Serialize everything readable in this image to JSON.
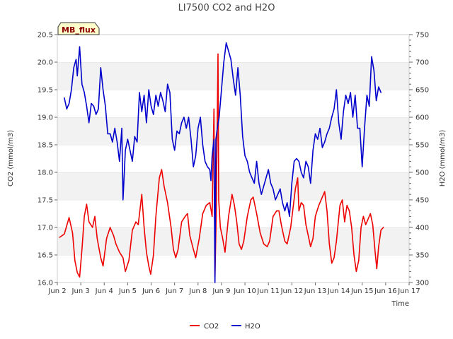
{
  "chart_data": {
    "type": "line",
    "title": "LI7500 CO2 and H2O",
    "xlabel": "Time",
    "ylabel_left": "CO2 (mmol/m3)",
    "ylabel_right": "H2O (mmol/m3)",
    "badge": "MB_flux",
    "x_unit": "day of June",
    "xlim": [
      2,
      17
    ],
    "ylim_left": [
      16.0,
      20.5
    ],
    "ylim_right": [
      300,
      750
    ],
    "x_ticks": [
      {
        "value": 2,
        "label": "Jun 2"
      },
      {
        "value": 3,
        "label": "Jun 3"
      },
      {
        "value": 4,
        "label": "Jun 4"
      },
      {
        "value": 5,
        "label": "Jun 5"
      },
      {
        "value": 6,
        "label": "Jun 6"
      },
      {
        "value": 7,
        "label": "Jun 7"
      },
      {
        "value": 8,
        "label": "Jun 8"
      },
      {
        "value": 9,
        "label": "Jun 9"
      },
      {
        "value": 10,
        "label": "Jun 10"
      },
      {
        "value": 11,
        "label": "Jun 11"
      },
      {
        "value": 12,
        "label": "Jun 12"
      },
      {
        "value": 13,
        "label": "Jun 13"
      },
      {
        "value": 14,
        "label": "Jun 14"
      },
      {
        "value": 15,
        "label": "Jun 15"
      },
      {
        "value": 16,
        "label": "Jun 16"
      },
      {
        "value": 17,
        "label": "Jun 17"
      }
    ],
    "y_left_ticks": [
      "16.0",
      "16.5",
      "17.0",
      "17.5",
      "18.0",
      "18.5",
      "19.0",
      "19.5",
      "20.0",
      "20.5"
    ],
    "y_right_ticks": [
      "300",
      "350",
      "400",
      "450",
      "500",
      "550",
      "600",
      "650",
      "700",
      "750"
    ],
    "grid": "horizontal bands",
    "legend": "bottom-center",
    "series": [
      {
        "name": "CO2",
        "color": "#ee0000",
        "axis": "left",
        "points": [
          [
            2.1,
            16.82
          ],
          [
            2.3,
            16.88
          ],
          [
            2.5,
            17.18
          ],
          [
            2.65,
            16.9
          ],
          [
            2.75,
            16.4
          ],
          [
            2.85,
            16.18
          ],
          [
            2.95,
            16.1
          ],
          [
            3.05,
            16.6
          ],
          [
            3.15,
            17.2
          ],
          [
            3.25,
            17.42
          ],
          [
            3.35,
            17.1
          ],
          [
            3.5,
            17.0
          ],
          [
            3.6,
            17.2
          ],
          [
            3.7,
            16.8
          ],
          [
            3.85,
            16.45
          ],
          [
            3.95,
            16.3
          ],
          [
            4.1,
            16.8
          ],
          [
            4.25,
            17.0
          ],
          [
            4.4,
            16.85
          ],
          [
            4.5,
            16.7
          ],
          [
            4.65,
            16.55
          ],
          [
            4.8,
            16.45
          ],
          [
            4.9,
            16.2
          ],
          [
            5.05,
            16.4
          ],
          [
            5.2,
            16.95
          ],
          [
            5.35,
            17.1
          ],
          [
            5.45,
            17.05
          ],
          [
            5.6,
            17.6
          ],
          [
            5.7,
            17.0
          ],
          [
            5.8,
            16.55
          ],
          [
            5.9,
            16.3
          ],
          [
            5.98,
            16.15
          ],
          [
            6.1,
            16.5
          ],
          [
            6.2,
            17.2
          ],
          [
            6.35,
            17.9
          ],
          [
            6.45,
            18.05
          ],
          [
            6.55,
            17.75
          ],
          [
            6.7,
            17.45
          ],
          [
            6.85,
            17.0
          ],
          [
            6.95,
            16.6
          ],
          [
            7.05,
            16.45
          ],
          [
            7.15,
            16.6
          ],
          [
            7.3,
            17.1
          ],
          [
            7.45,
            17.2
          ],
          [
            7.55,
            17.25
          ],
          [
            7.65,
            16.85
          ],
          [
            7.8,
            16.6
          ],
          [
            7.9,
            16.45
          ],
          [
            8.05,
            16.8
          ],
          [
            8.2,
            17.25
          ],
          [
            8.35,
            17.4
          ],
          [
            8.5,
            17.45
          ],
          [
            8.6,
            17.2
          ],
          [
            8.68,
            19.15
          ],
          [
            8.72,
            16.1
          ],
          [
            8.78,
            17.3
          ],
          [
            8.82,
            19.0
          ],
          [
            8.85,
            20.15
          ],
          [
            8.88,
            17.5
          ],
          [
            8.95,
            17.0
          ],
          [
            9.05,
            16.8
          ],
          [
            9.15,
            16.55
          ],
          [
            9.3,
            17.2
          ],
          [
            9.45,
            17.6
          ],
          [
            9.55,
            17.4
          ],
          [
            9.65,
            17.1
          ],
          [
            9.75,
            16.7
          ],
          [
            9.85,
            16.6
          ],
          [
            9.95,
            16.75
          ],
          [
            10.1,
            17.2
          ],
          [
            10.25,
            17.5
          ],
          [
            10.35,
            17.55
          ],
          [
            10.5,
            17.25
          ],
          [
            10.65,
            16.9
          ],
          [
            10.8,
            16.7
          ],
          [
            10.95,
            16.65
          ],
          [
            11.05,
            16.75
          ],
          [
            11.2,
            17.2
          ],
          [
            11.35,
            17.3
          ],
          [
            11.45,
            17.3
          ],
          [
            11.55,
            17.05
          ],
          [
            11.7,
            16.75
          ],
          [
            11.8,
            16.7
          ],
          [
            11.95,
            17.0
          ],
          [
            12.05,
            17.35
          ],
          [
            12.15,
            17.7
          ],
          [
            12.25,
            17.9
          ],
          [
            12.3,
            17.3
          ],
          [
            12.4,
            17.45
          ],
          [
            12.5,
            17.4
          ],
          [
            12.6,
            17.05
          ],
          [
            12.7,
            16.85
          ],
          [
            12.8,
            16.65
          ],
          [
            12.9,
            16.8
          ],
          [
            13.0,
            17.2
          ],
          [
            13.15,
            17.4
          ],
          [
            13.3,
            17.55
          ],
          [
            13.4,
            17.65
          ],
          [
            13.5,
            17.3
          ],
          [
            13.6,
            16.7
          ],
          [
            13.7,
            16.35
          ],
          [
            13.8,
            16.45
          ],
          [
            13.9,
            16.75
          ],
          [
            14.05,
            17.4
          ],
          [
            14.15,
            17.5
          ],
          [
            14.25,
            17.1
          ],
          [
            14.35,
            17.4
          ],
          [
            14.45,
            17.3
          ],
          [
            14.55,
            17.0
          ],
          [
            14.65,
            16.5
          ],
          [
            14.75,
            16.2
          ],
          [
            14.85,
            16.4
          ],
          [
            14.95,
            17.0
          ],
          [
            15.05,
            17.2
          ],
          [
            15.15,
            17.05
          ],
          [
            15.25,
            17.15
          ],
          [
            15.35,
            17.25
          ],
          [
            15.45,
            17.05
          ],
          [
            15.55,
            16.55
          ],
          [
            15.62,
            16.25
          ],
          [
            15.7,
            16.65
          ],
          [
            15.8,
            16.95
          ],
          [
            15.9,
            17.0
          ]
        ]
      },
      {
        "name": "H2O",
        "color": "#0000cc",
        "axis": "right",
        "points": [
          [
            2.3,
            635
          ],
          [
            2.4,
            615
          ],
          [
            2.5,
            625
          ],
          [
            2.6,
            650
          ],
          [
            2.7,
            690
          ],
          [
            2.8,
            705
          ],
          [
            2.85,
            675
          ],
          [
            2.95,
            728
          ],
          [
            3.05,
            660
          ],
          [
            3.15,
            645
          ],
          [
            3.25,
            620
          ],
          [
            3.35,
            590
          ],
          [
            3.45,
            625
          ],
          [
            3.55,
            620
          ],
          [
            3.65,
            605
          ],
          [
            3.75,
            615
          ],
          [
            3.85,
            690
          ],
          [
            3.95,
            650
          ],
          [
            4.05,
            620
          ],
          [
            4.15,
            570
          ],
          [
            4.25,
            570
          ],
          [
            4.35,
            555
          ],
          [
            4.45,
            580
          ],
          [
            4.55,
            555
          ],
          [
            4.65,
            520
          ],
          [
            4.75,
            580
          ],
          [
            4.8,
            450
          ],
          [
            4.9,
            540
          ],
          [
            5.0,
            560
          ],
          [
            5.1,
            540
          ],
          [
            5.2,
            520
          ],
          [
            5.3,
            565
          ],
          [
            5.4,
            555
          ],
          [
            5.5,
            645
          ],
          [
            5.6,
            610
          ],
          [
            5.7,
            640
          ],
          [
            5.8,
            590
          ],
          [
            5.9,
            650
          ],
          [
            6.0,
            620
          ],
          [
            6.1,
            605
          ],
          [
            6.2,
            640
          ],
          [
            6.3,
            620
          ],
          [
            6.4,
            645
          ],
          [
            6.5,
            630
          ],
          [
            6.6,
            610
          ],
          [
            6.7,
            660
          ],
          [
            6.8,
            645
          ],
          [
            6.9,
            560
          ],
          [
            7.0,
            540
          ],
          [
            7.1,
            575
          ],
          [
            7.2,
            570
          ],
          [
            7.3,
            590
          ],
          [
            7.4,
            600
          ],
          [
            7.5,
            580
          ],
          [
            7.6,
            600
          ],
          [
            7.7,
            560
          ],
          [
            7.8,
            510
          ],
          [
            7.9,
            530
          ],
          [
            8.0,
            580
          ],
          [
            8.1,
            600
          ],
          [
            8.2,
            550
          ],
          [
            8.3,
            520
          ],
          [
            8.4,
            510
          ],
          [
            8.5,
            505
          ],
          [
            8.55,
            485
          ],
          [
            8.6,
            530
          ],
          [
            8.68,
            560
          ],
          [
            8.72,
            300
          ],
          [
            8.76,
            560
          ],
          [
            8.82,
            580
          ],
          [
            8.9,
            600
          ],
          [
            9.0,
            650
          ],
          [
            9.1,
            700
          ],
          [
            9.2,
            735
          ],
          [
            9.3,
            720
          ],
          [
            9.4,
            705
          ],
          [
            9.5,
            670
          ],
          [
            9.6,
            640
          ],
          [
            9.7,
            690
          ],
          [
            9.8,
            640
          ],
          [
            9.9,
            565
          ],
          [
            10.0,
            530
          ],
          [
            10.1,
            520
          ],
          [
            10.2,
            500
          ],
          [
            10.3,
            490
          ],
          [
            10.4,
            480
          ],
          [
            10.5,
            520
          ],
          [
            10.6,
            480
          ],
          [
            10.7,
            460
          ],
          [
            10.8,
            475
          ],
          [
            10.9,
            490
          ],
          [
            11.0,
            505
          ],
          [
            11.1,
            480
          ],
          [
            11.2,
            470
          ],
          [
            11.3,
            450
          ],
          [
            11.4,
            460
          ],
          [
            11.5,
            470
          ],
          [
            11.6,
            445
          ],
          [
            11.7,
            430
          ],
          [
            11.8,
            445
          ],
          [
            11.9,
            420
          ],
          [
            12.0,
            480
          ],
          [
            12.1,
            520
          ],
          [
            12.2,
            525
          ],
          [
            12.3,
            520
          ],
          [
            12.4,
            500
          ],
          [
            12.5,
            490
          ],
          [
            12.6,
            520
          ],
          [
            12.7,
            510
          ],
          [
            12.8,
            480
          ],
          [
            12.9,
            540
          ],
          [
            13.0,
            570
          ],
          [
            13.1,
            560
          ],
          [
            13.2,
            580
          ],
          [
            13.3,
            545
          ],
          [
            13.4,
            555
          ],
          [
            13.5,
            570
          ],
          [
            13.6,
            580
          ],
          [
            13.7,
            600
          ],
          [
            13.8,
            615
          ],
          [
            13.9,
            650
          ],
          [
            14.0,
            590
          ],
          [
            14.1,
            560
          ],
          [
            14.2,
            610
          ],
          [
            14.3,
            640
          ],
          [
            14.4,
            625
          ],
          [
            14.5,
            645
          ],
          [
            14.6,
            600
          ],
          [
            14.7,
            640
          ],
          [
            14.8,
            580
          ],
          [
            14.9,
            580
          ],
          [
            15.0,
            510
          ],
          [
            15.1,
            580
          ],
          [
            15.2,
            640
          ],
          [
            15.3,
            620
          ],
          [
            15.4,
            710
          ],
          [
            15.5,
            685
          ],
          [
            15.6,
            630
          ],
          [
            15.7,
            655
          ],
          [
            15.8,
            645
          ]
        ]
      }
    ]
  }
}
